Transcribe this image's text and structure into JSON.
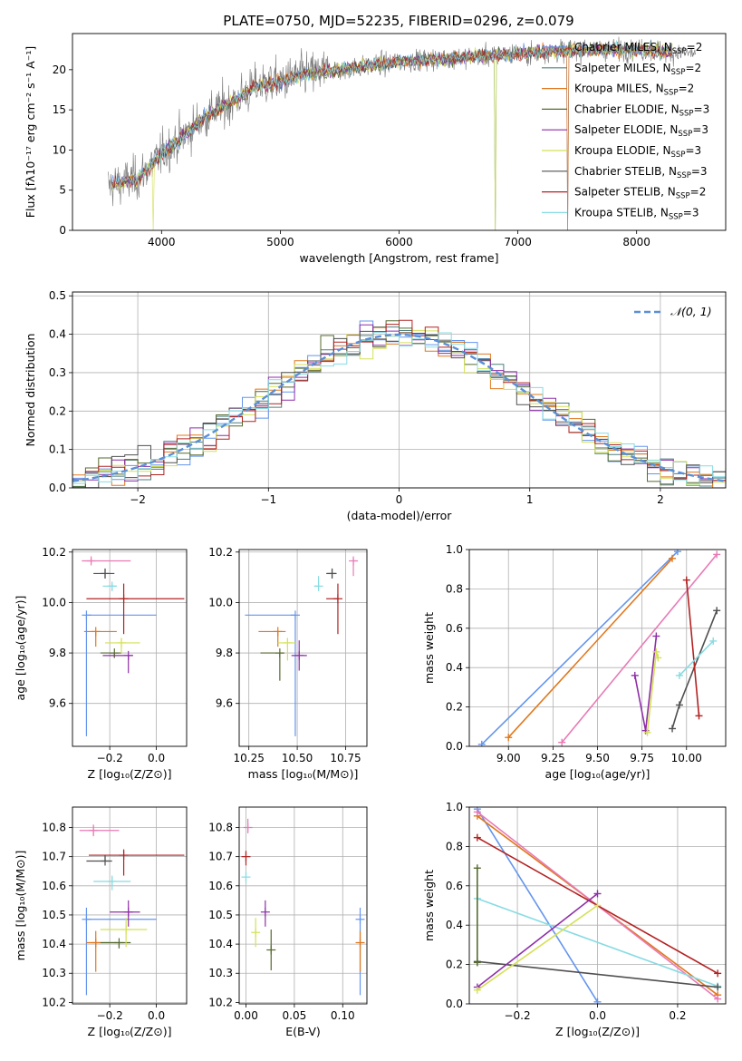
{
  "figure": {
    "title": "PLATE=0750, MJD=52235, FIBERID=0296, z=0.079"
  },
  "series_styles": [
    {
      "name": "Chabrier MILES",
      "nssp": "2",
      "color": "#6495ed"
    },
    {
      "name": "Salpeter MILES",
      "nssp": "2",
      "color": "#4f7f7f"
    },
    {
      "name": "Kroupa MILES",
      "nssp": "2",
      "color": "#e0781e"
    },
    {
      "name": "Chabrier ELODIE",
      "nssp": "3",
      "color": "#556b2f"
    },
    {
      "name": "Salpeter ELODIE",
      "nssp": "3",
      "color": "#8e2fa8"
    },
    {
      "name": "Kroupa ELODIE",
      "nssp": "3",
      "color": "#d4e157"
    },
    {
      "name": "Chabrier STELIB",
      "nssp": "3",
      "color": "#505050"
    },
    {
      "name": "Salpeter STELIB",
      "nssp": "2",
      "color": "#b22222"
    },
    {
      "name": "Kroupa STELIB",
      "nssp": "3",
      "color": "#88dbe3"
    }
  ],
  "extra_colors": {
    "pink": "#e87ab5"
  },
  "chart_data": [
    {
      "id": "spectrum",
      "type": "line",
      "xlabel": "wavelength [Angstrom, rest frame]",
      "ylabel": "Flux [fλ10⁻¹⁷ erg cm⁻² s⁻¹ A⁻¹]",
      "xlim": [
        3250,
        8750
      ],
      "ylim": [
        0,
        24.5
      ],
      "xticks": [
        4000,
        5000,
        6000,
        7000,
        8000
      ],
      "yticks": [
        0,
        5,
        10,
        15,
        20
      ],
      "data_range": [
        3550,
        8500
      ],
      "trend_x": [
        3550,
        3800,
        4000,
        4200,
        4400,
        4600,
        4800,
        5000,
        5200,
        5500,
        6000,
        6500,
        7000,
        7500,
        8000,
        8500
      ],
      "trend_y": [
        5.5,
        6.5,
        9.5,
        12.0,
        14.5,
        16.0,
        18.0,
        18.5,
        19.5,
        20.0,
        21.0,
        21.5,
        22.0,
        22.5,
        22.5,
        22.0
      ],
      "model_drop_x": [
        3930,
        6810,
        7420
      ],
      "legend_location": "right"
    },
    {
      "id": "residual_histogram",
      "type": "histogram",
      "xlabel": "(data-model)/error",
      "ylabel": "Normed distribution",
      "xlim": [
        -2.5,
        2.5
      ],
      "ylim": [
        0,
        0.51
      ],
      "xticks": [
        -2,
        -1,
        0,
        1,
        2
      ],
      "yticks": [
        0.0,
        0.1,
        0.2,
        0.3,
        0.4,
        0.5
      ],
      "bin_width": 0.1,
      "reference_curve": "𝒩(0, 1)",
      "legend_location": "top-right",
      "grid": true
    },
    {
      "id": "age_vs_Z",
      "type": "scatter-errorbar",
      "xlabel": "Z [log₁₀(Z/Z⊙)]",
      "ylabel": "age  [log₁₀(age/yr)]",
      "xlim": [
        -0.36,
        0.13
      ],
      "ylim": [
        9.43,
        10.21
      ],
      "xticks": [
        -0.2,
        0.0
      ],
      "yticks": [
        9.6,
        9.8,
        10.0,
        10.2
      ],
      "grid": true,
      "points": [
        {
          "series": 0,
          "x": -0.3,
          "xerr": [
            0.0,
            0.3
          ],
          "y": 9.95,
          "yerr": [
            0.48,
            0.0
          ]
        },
        {
          "series": 2,
          "x": -0.26,
          "xerr": [
            0.05,
            0.09
          ],
          "y": 9.885,
          "yerr": [
            0.06,
            0.0
          ]
        },
        {
          "series": 3,
          "x": -0.18,
          "xerr": [
            0.06,
            0.03
          ],
          "y": 9.8,
          "yerr": [
            0.02,
            0.0
          ]
        },
        {
          "series": 4,
          "x": -0.12,
          "xerr": [
            0.11,
            0.02
          ],
          "y": 9.79,
          "yerr": [
            0.07,
            0.0
          ]
        },
        {
          "series": 5,
          "x": -0.15,
          "xerr": [
            0.07,
            0.08
          ],
          "y": 9.84,
          "yerr": [
            0.04,
            0.02
          ]
        },
        {
          "series": 6,
          "x": -0.22,
          "xerr": [
            0.05,
            0.04
          ],
          "y": 10.115,
          "yerr": [
            0.02,
            0.02
          ]
        },
        {
          "series": 7,
          "x": -0.14,
          "xerr": [
            0.16,
            0.26
          ],
          "y": 10.015,
          "yerr": [
            0.14,
            0.06
          ]
        },
        {
          "series": 8,
          "x": -0.19,
          "xerr": [
            0.04,
            0.02
          ],
          "y": 10.065,
          "yerr": [
            0.02,
            0.01
          ]
        },
        {
          "series": "pink",
          "x": -0.28,
          "xerr": [
            0.04,
            0.17
          ],
          "y": 10.165,
          "yerr": [
            0.01,
            0.01
          ]
        }
      ]
    },
    {
      "id": "age_vs_mass",
      "type": "scatter-errorbar",
      "xlabel": "mass [log₁₀(M/M⊙)]",
      "ylabel": "",
      "xlim": [
        10.2,
        10.86
      ],
      "ylim": [
        9.43,
        10.21
      ],
      "xticks": [
        10.25,
        10.5,
        10.75
      ],
      "yticks": [
        9.6,
        9.8,
        10.0,
        10.2
      ],
      "grid": true,
      "points": [
        {
          "series": 0,
          "x": 10.49,
          "xerr": [
            0.26,
            0.0
          ],
          "y": 9.95,
          "yerr": [
            0.48,
            0.0
          ]
        },
        {
          "series": 2,
          "x": 10.4,
          "xerr": [
            0.1,
            0.04
          ],
          "y": 9.885,
          "yerr": [
            0.06,
            0.0
          ]
        },
        {
          "series": 3,
          "x": 10.41,
          "xerr": [
            0.1,
            0.02
          ],
          "y": 9.8,
          "yerr": [
            0.11,
            0.0
          ]
        },
        {
          "series": 4,
          "x": 10.51,
          "xerr": [
            0.04,
            0.04
          ],
          "y": 9.79,
          "yerr": [
            0.06,
            0.06
          ]
        },
        {
          "series": 5,
          "x": 10.45,
          "xerr": [
            0.05,
            0.04
          ],
          "y": 9.84,
          "yerr": [
            0.07,
            0.02
          ]
        },
        {
          "series": 6,
          "x": 10.68,
          "xerr": [
            0.03,
            0.02
          ],
          "y": 10.115,
          "yerr": [
            0.02,
            0.02
          ]
        },
        {
          "series": 7,
          "x": 10.71,
          "xerr": [
            0.06,
            0.0
          ],
          "y": 10.015,
          "yerr": [
            0.14,
            0.06
          ]
        },
        {
          "series": 8,
          "x": 10.61,
          "xerr": [
            0.02,
            0.0
          ],
          "y": 10.065,
          "yerr": [
            0.02,
            0.04
          ]
        },
        {
          "series": "pink",
          "x": 10.79,
          "xerr": [
            0.0,
            0.02
          ],
          "y": 10.165,
          "yerr": [
            0.06,
            0.01
          ]
        }
      ]
    },
    {
      "id": "mass_weight_vs_age",
      "type": "line",
      "xlabel": "age  [log₁₀(age/yr)]",
      "ylabel": "mass weight",
      "xlim": [
        8.78,
        10.22
      ],
      "ylim": [
        0,
        1
      ],
      "xticks": [
        9.0,
        9.25,
        9.5,
        9.75,
        10.0
      ],
      "yticks": [
        0.0,
        0.2,
        0.4,
        0.6,
        0.8,
        1.0
      ],
      "grid": true,
      "series": [
        {
          "series": 0,
          "points": [
            [
              8.85,
              0.01
            ],
            [
              9.95,
              0.99
            ]
          ]
        },
        {
          "series": 2,
          "points": [
            [
              9.0,
              0.045
            ],
            [
              9.92,
              0.955
            ]
          ]
        },
        {
          "series": "pink",
          "points": [
            [
              9.3,
              0.02
            ],
            [
              10.17,
              0.975
            ]
          ]
        },
        {
          "series": 4,
          "points": [
            [
              9.71,
              0.36
            ],
            [
              9.77,
              0.08
            ],
            [
              9.83,
              0.56
            ]
          ]
        },
        {
          "series": 5,
          "points": [
            [
              9.78,
              0.07
            ],
            [
              9.83,
              0.48
            ],
            [
              9.84,
              0.45
            ]
          ]
        },
        {
          "series": 6,
          "points": [
            [
              9.92,
              0.09
            ],
            [
              9.96,
              0.21
            ],
            [
              10.17,
              0.69
            ]
          ]
        },
        {
          "series": 7,
          "points": [
            [
              10.0,
              0.845
            ],
            [
              10.07,
              0.155
            ]
          ]
        },
        {
          "series": 8,
          "points": [
            [
              9.96,
              0.36
            ],
            [
              10.15,
              0.535
            ]
          ]
        }
      ]
    },
    {
      "id": "mass_vs_Z",
      "type": "scatter-errorbar",
      "xlabel": "Z [log₁₀(Z/Z⊙)]",
      "ylabel": "mass [log₁₀(M/M⊙)]",
      "xlim": [
        -0.36,
        0.13
      ],
      "ylim": [
        10.195,
        10.87
      ],
      "xticks": [
        -0.2,
        0.0
      ],
      "yticks": [
        10.2,
        10.3,
        10.4,
        10.5,
        10.6,
        10.7,
        10.8
      ],
      "grid": true,
      "points": [
        {
          "series": 0,
          "x": -0.3,
          "xerr": [
            0.0,
            0.3
          ],
          "y": 10.485,
          "yerr": [
            0.26,
            0.04
          ]
        },
        {
          "series": 2,
          "x": -0.26,
          "xerr": [
            0.04,
            0.09
          ],
          "y": 10.405,
          "yerr": [
            0.1,
            0.04
          ]
        },
        {
          "series": 3,
          "x": -0.16,
          "xerr": [
            0.08,
            0.05
          ],
          "y": 10.405,
          "yerr": [
            0.02,
            0.0
          ]
        },
        {
          "series": 4,
          "x": -0.12,
          "xerr": [
            0.08,
            0.05
          ],
          "y": 10.51,
          "yerr": [
            0.05,
            0.04
          ]
        },
        {
          "series": 5,
          "x": -0.13,
          "xerr": [
            0.11,
            0.09
          ],
          "y": 10.45,
          "yerr": [
            0.06,
            0.04
          ]
        },
        {
          "series": 6,
          "x": -0.22,
          "xerr": [
            0.08,
            0.03
          ],
          "y": 10.685,
          "yerr": [
            0.0,
            0.02
          ]
        },
        {
          "series": 7,
          "x": -0.14,
          "xerr": [
            0.15,
            0.26
          ],
          "y": 10.705,
          "yerr": [
            0.07,
            0.02
          ]
        },
        {
          "series": 8,
          "x": -0.19,
          "xerr": [
            0.08,
            0.08
          ],
          "y": 10.615,
          "yerr": [
            0.03,
            0.02
          ]
        },
        {
          "series": "pink",
          "x": -0.27,
          "xerr": [
            0.06,
            0.11
          ],
          "y": 10.79,
          "yerr": [
            0.02,
            0.02
          ]
        }
      ]
    },
    {
      "id": "mass_vs_EBV",
      "type": "scatter-errorbar",
      "xlabel": "E(B-V)",
      "ylabel": "",
      "xlim": [
        -0.007,
        0.125
      ],
      "ylim": [
        10.195,
        10.87
      ],
      "xticks": [
        0.0,
        0.05,
        0.1
      ],
      "yticks": [
        10.2,
        10.3,
        10.4,
        10.5,
        10.6,
        10.7,
        10.8
      ],
      "grid": true,
      "points": [
        {
          "series": 0,
          "x": 0.118,
          "y": 10.485,
          "yerr": [
            0.26,
            0.04
          ]
        },
        {
          "series": 2,
          "x": 0.118,
          "y": 10.405,
          "yerr": [
            0.1,
            0.04
          ]
        },
        {
          "series": 3,
          "x": 0.026,
          "y": 10.38,
          "yerr": [
            0.07,
            0.07
          ]
        },
        {
          "series": 4,
          "x": 0.02,
          "y": 10.51,
          "yerr": [
            0.05,
            0.04
          ]
        },
        {
          "series": 5,
          "x": 0.01,
          "y": 10.44,
          "yerr": [
            0.05,
            0.05
          ]
        },
        {
          "series": 7,
          "x": 0.0,
          "y": 10.7,
          "yerr": [
            0.03,
            0.02
          ]
        },
        {
          "series": 8,
          "x": 0.0,
          "y": 10.63,
          "yerr": [
            0.02,
            0.02
          ]
        },
        {
          "series": "pink",
          "x": 0.002,
          "y": 10.8,
          "yerr": [
            0.02,
            0.03
          ]
        }
      ]
    },
    {
      "id": "mass_weight_vs_Z",
      "type": "line",
      "xlabel": "Z [log₁₀(Z/Z⊙)]",
      "ylabel": "mass weight",
      "xlim": [
        -0.32,
        0.32
      ],
      "ylim": [
        0,
        1
      ],
      "xticks": [
        -0.2,
        0.0,
        0.2
      ],
      "yticks": [
        0.0,
        0.2,
        0.4,
        0.6,
        0.8,
        1.0
      ],
      "grid": true,
      "series": [
        {
          "series": 0,
          "points": [
            [
              -0.3,
              0.99
            ],
            [
              0.0,
              0.01
            ]
          ]
        },
        {
          "series": 2,
          "points": [
            [
              -0.3,
              0.955
            ],
            [
              0.3,
              0.045
            ]
          ]
        },
        {
          "series": "pink",
          "points": [
            [
              -0.3,
              0.975
            ],
            [
              0.3,
              0.025
            ]
          ]
        },
        {
          "series": 7,
          "points": [
            [
              -0.3,
              0.845
            ],
            [
              0.3,
              0.155
            ]
          ]
        },
        {
          "series": 8,
          "points": [
            [
              -0.3,
              0.535
            ],
            [
              0.3,
              0.09
            ]
          ]
        },
        {
          "series": 6,
          "points": [
            [
              -0.3,
              0.215
            ],
            [
              0.3,
              0.085
            ]
          ]
        },
        {
          "series": 4,
          "points": [
            [
              -0.3,
              0.085
            ],
            [
              0.0,
              0.56
            ]
          ]
        },
        {
          "series": 5,
          "points": [
            [
              -0.3,
              0.07
            ],
            [
              0.0,
              0.5
            ]
          ]
        },
        {
          "series": 3,
          "points": [
            [
              -0.3,
              0.69
            ],
            [
              -0.3,
              0.21
            ]
          ]
        }
      ]
    }
  ]
}
